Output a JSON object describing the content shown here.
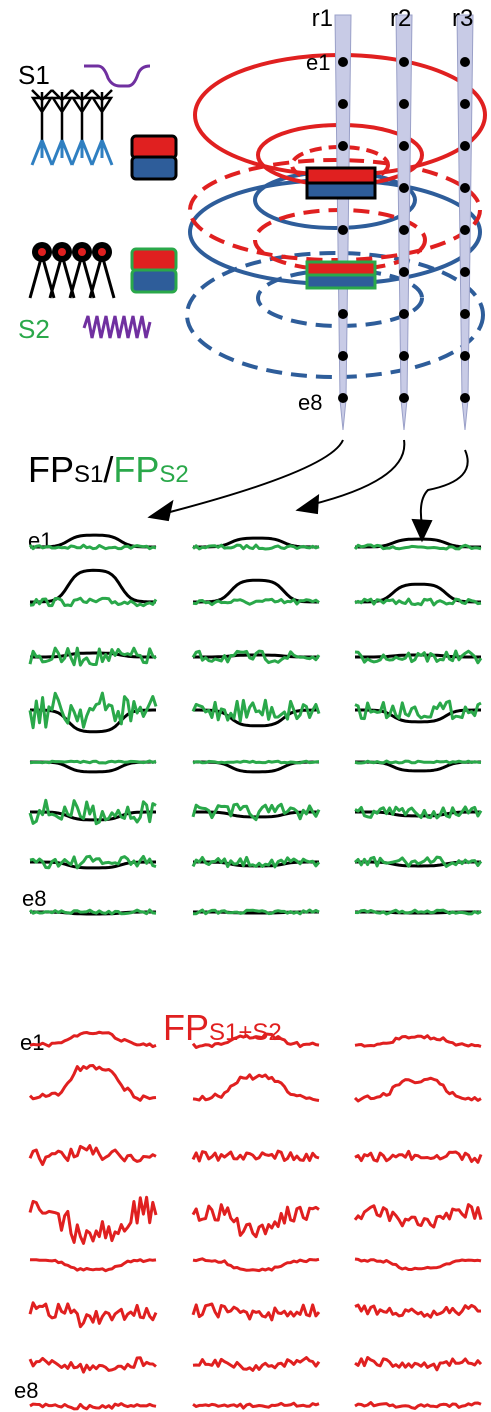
{
  "diagram": {
    "source1": "S1",
    "source2": "S2",
    "shanks": [
      "r1",
      "r2",
      "r3"
    ],
    "first_site": "e1",
    "last_site": "e8"
  },
  "panel_separate": {
    "title": {
      "fp1": "FP",
      "sub1": "S1",
      "slash": "/",
      "fp2": "FP",
      "sub2": "S2"
    },
    "first_site": "e1",
    "last_site": "e8"
  },
  "panel_sum": {
    "title": {
      "fp": "FP",
      "sub": "S1+S2"
    },
    "first_site": "e1",
    "last_site": "e8"
  }
}
